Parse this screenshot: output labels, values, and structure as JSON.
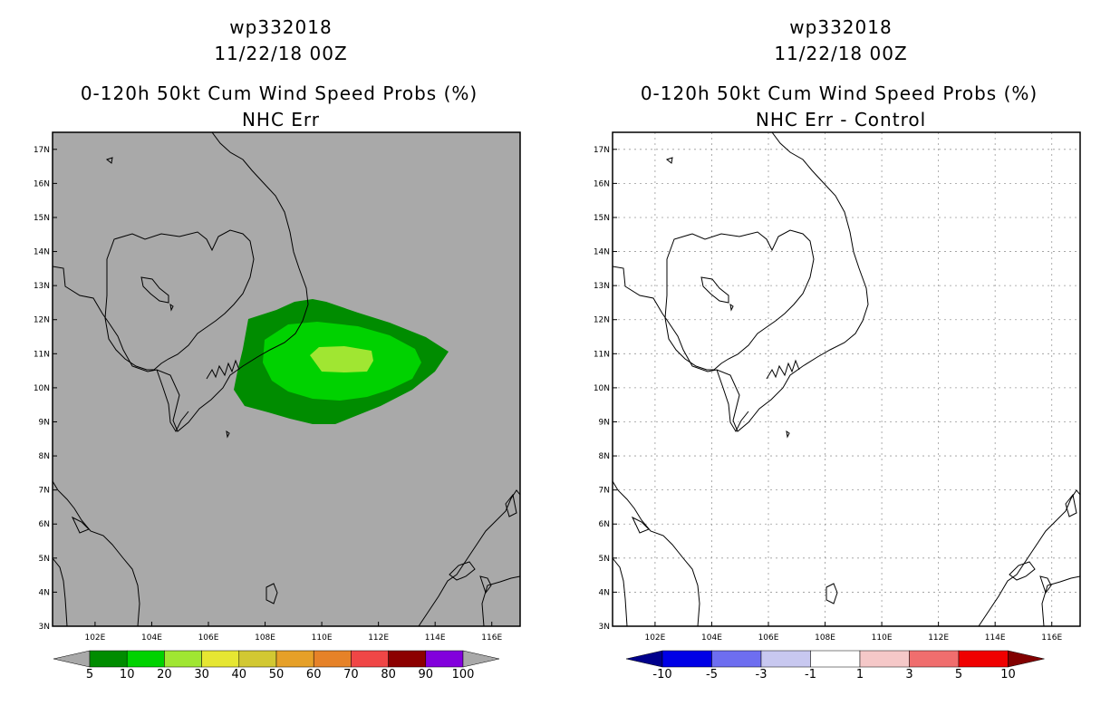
{
  "panels": [
    {
      "storm_id": "wp332018",
      "datetime": "11/22/18 00Z",
      "title": "0-120h 50kt Cum Wind Speed Probs (%)",
      "subtitle": "NHC Err",
      "background_color": "#a9a9a9"
    },
    {
      "storm_id": "wp332018",
      "datetime": "11/22/18 00Z",
      "title": "0-120h 50kt Cum Wind Speed Probs (%)",
      "subtitle": "NHC Err - Control",
      "background_color": "#ffffff"
    }
  ],
  "axes": {
    "lon_labels": [
      "102E",
      "104E",
      "106E",
      "108E",
      "110E",
      "112E",
      "114E",
      "116E"
    ],
    "lon_values": [
      102,
      104,
      106,
      108,
      110,
      112,
      114,
      116
    ],
    "lat_labels": [
      "3N",
      "4N",
      "5N",
      "6N",
      "7N",
      "8N",
      "9N",
      "10N",
      "11N",
      "12N",
      "13N",
      "14N",
      "15N",
      "16N",
      "17N"
    ],
    "lat_values": [
      3,
      4,
      5,
      6,
      7,
      8,
      9,
      10,
      11,
      12,
      13,
      14,
      15,
      16,
      17
    ],
    "lon_range": [
      100.5,
      117
    ],
    "lat_range": [
      3,
      17.5
    ]
  },
  "prob_colorbar": {
    "labels": [
      "5",
      "10",
      "20",
      "30",
      "40",
      "50",
      "60",
      "70",
      "80",
      "90",
      "100"
    ],
    "colors": [
      "#008c00",
      "#00d200",
      "#a0e632",
      "#e6e632",
      "#d2c832",
      "#e6a028",
      "#e68228",
      "#f04646",
      "#8c0000",
      "#8200dc"
    ],
    "end_colors": [
      "#a9a9a9",
      "#a9a9a9"
    ]
  },
  "diff_colorbar": {
    "labels": [
      "-10",
      "-5",
      "-3",
      "-1",
      "1",
      "3",
      "5",
      "10"
    ],
    "colors": [
      "#0000e6",
      "#6e6ef0",
      "#c8c8f0",
      "#ffffff",
      "#f5c8c8",
      "#f06e6e",
      "#f00000"
    ],
    "end_colors": [
      "#00008c",
      "#820000"
    ]
  },
  "prob_contours": [
    {
      "level": 5,
      "color": "#008c00"
    },
    {
      "level": 10,
      "color": "#00d200"
    },
    {
      "level": 20,
      "color": "#a0e632"
    }
  ]
}
